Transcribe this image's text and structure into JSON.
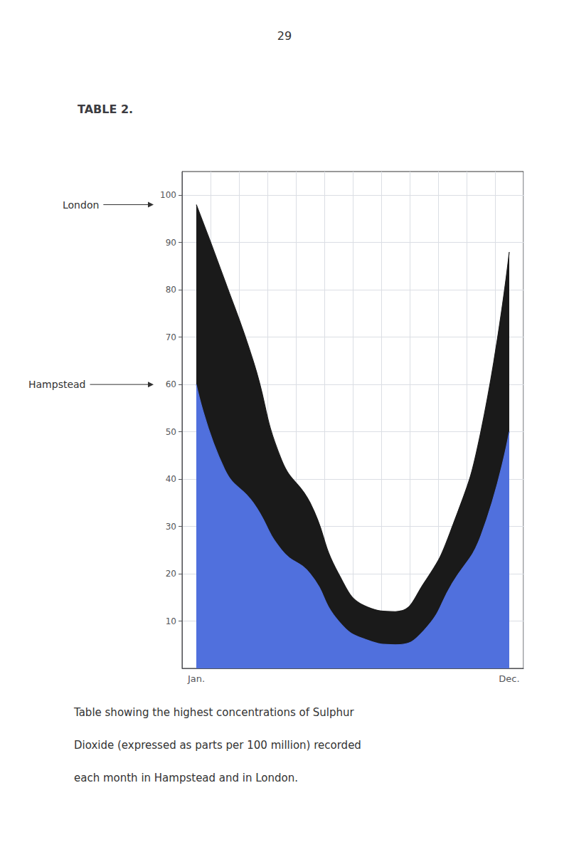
{
  "chart_data": {
    "type": "area",
    "page_number": "29",
    "title": "TABLE 2.",
    "caption": [
      "Table showing the highest concentrations of Sulphur",
      "Dioxide (expressed as parts per 100 million) recorded",
      "each month in Hampstead and in London."
    ],
    "categories": [
      "Jan.",
      null,
      null,
      null,
      null,
      null,
      null,
      null,
      null,
      null,
      null,
      "Dec."
    ],
    "series": [
      {
        "name": "London",
        "color": "#1a1a1a",
        "values": [
          98,
          82,
          65,
          44,
          35,
          20,
          13,
          12,
          18,
          30,
          50,
          88
        ]
      },
      {
        "name": "Hampstead",
        "values": [
          60,
          42,
          35,
          25,
          20,
          10,
          6,
          5,
          8,
          18,
          28,
          50
        ]
      }
    ],
    "ylim": [
      0,
      105
    ],
    "yticks": [
      10,
      20,
      30,
      40,
      50,
      60,
      70,
      80,
      90,
      100
    ],
    "grid": true
  }
}
